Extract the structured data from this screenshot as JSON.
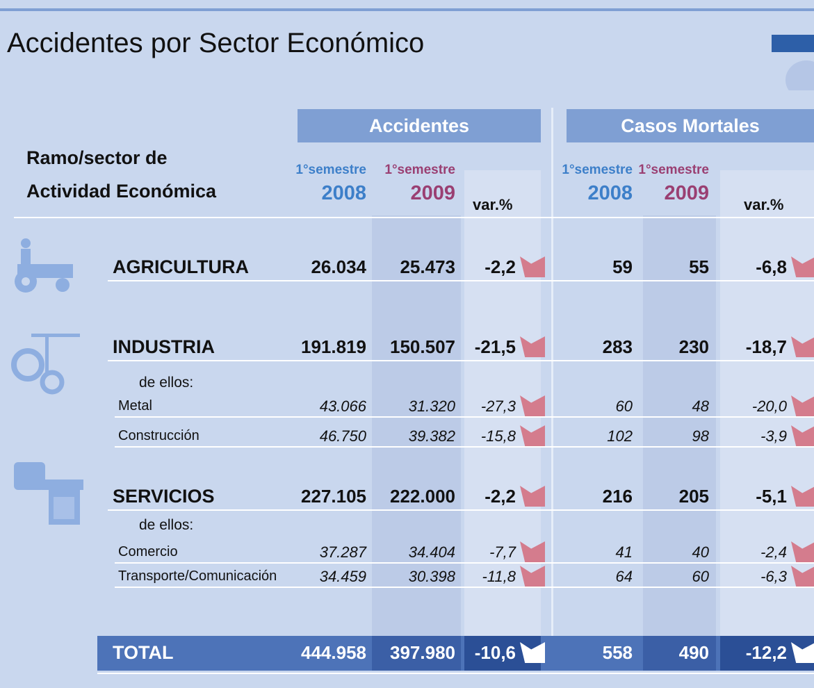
{
  "header": {
    "title": "Accidentes por Sector Económico"
  },
  "table": {
    "row_header": [
      "Ramo/sector de",
      "Actividad Económica"
    ],
    "groups": [
      "Accidentes",
      "Casos Mortales"
    ],
    "columns": [
      {
        "period": "1°semestre",
        "year": "2008"
      },
      {
        "period": "1°semestre",
        "year": "2009"
      },
      {
        "label": "var.%"
      },
      {
        "period": "1°semestre",
        "year": "2008"
      },
      {
        "period": "1°semestre",
        "year": "2009"
      },
      {
        "label": "var.%"
      }
    ],
    "rows": [
      {
        "label": "AGRICULTURA",
        "style": "main",
        "values": [
          "26.034",
          "25.473",
          "-2,2",
          "59",
          "55",
          "-6,8"
        ]
      },
      {
        "label": "INDUSTRIA",
        "style": "main",
        "values": [
          "191.819",
          "150.507",
          "-21,5",
          "283",
          "230",
          "-18,7"
        ]
      },
      {
        "label": "de ellos:",
        "style": "note"
      },
      {
        "label": "Metal",
        "style": "sub",
        "values": [
          "43.066",
          "31.320",
          "-27,3",
          "60",
          "48",
          "-20,0"
        ]
      },
      {
        "label": "Construcción",
        "style": "sub",
        "values": [
          "46.750",
          "39.382",
          "-15,8",
          "102",
          "98",
          "-3,9"
        ]
      },
      {
        "label": "SERVICIOS",
        "style": "main",
        "values": [
          "227.105",
          "222.000",
          "-2,2",
          "216",
          "205",
          "-5,1"
        ]
      },
      {
        "label": "de ellos:",
        "style": "note"
      },
      {
        "label": "Comercio",
        "style": "sub",
        "values": [
          "37.287",
          "34.404",
          "-7,7",
          "41",
          "40",
          "-2,4"
        ]
      },
      {
        "label": "Transporte/Comunicación",
        "style": "sub",
        "values": [
          "34.459",
          "30.398",
          "-11,8",
          "64",
          "60",
          "-6,3"
        ]
      },
      {
        "label": "TOTAL",
        "style": "total",
        "values": [
          "444.958",
          "397.980",
          "-10,6",
          "558",
          "490",
          "-12,2"
        ]
      }
    ]
  }
}
